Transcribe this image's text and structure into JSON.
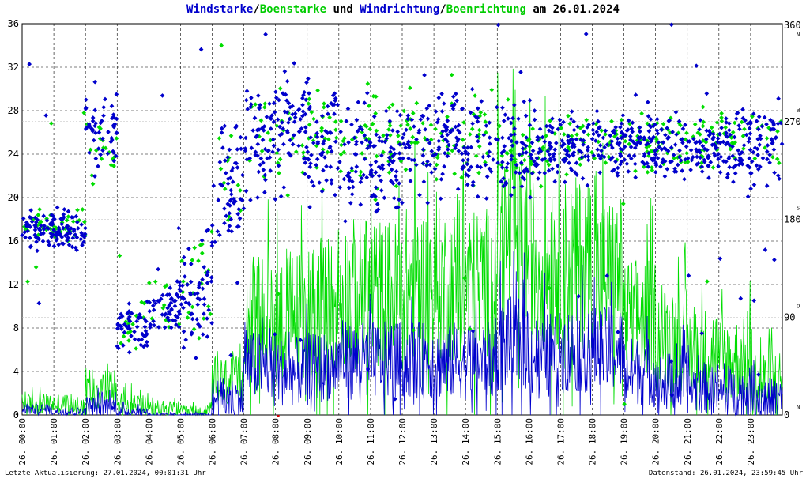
{
  "title": {
    "part1": "Windstarke",
    "sep1": "/",
    "part2": "Boenstarke",
    "part3": " und ",
    "part4": "Windrichtung",
    "sep2": "/",
    "part5": "Boenrichtung",
    "part6": " am 26.01.2024"
  },
  "footer": {
    "left": "Letzte Aktualisierung: 27.01.2024, 00:01:31 Uhr",
    "right": "Datenstand: 26.01.2024, 23:59:45 Uhr"
  },
  "colors": {
    "wind": "#0000cc",
    "gust": "#00dd00",
    "grid": "#000000",
    "background": "#ffffff",
    "marker": "#cc0000"
  },
  "chart_data": {
    "type": "line+scatter",
    "x_tick_labels": [
      "26. 00:00",
      "26. 01:00",
      "26. 02:00",
      "26. 03:00",
      "26. 04:00",
      "26. 05:00",
      "26. 06:00",
      "26. 07:00",
      "26. 08:00",
      "26. 09:00",
      "26. 10:00",
      "26. 11:00",
      "26. 12:00",
      "26. 13:00",
      "26. 14:00",
      "26. 15:00",
      "26. 16:00",
      "26. 17:00",
      "26. 18:00",
      "26. 19:00",
      "26. 20:00",
      "26. 21:00",
      "26. 22:00",
      "26. 23:00"
    ],
    "xlim": [
      0,
      24
    ],
    "y_left": {
      "ylim": [
        0,
        36
      ],
      "ticks": [
        "0",
        "4",
        "8",
        "12",
        "16",
        "20",
        "24",
        "28",
        "32",
        "36"
      ]
    },
    "y_right": {
      "ylim": [
        0,
        360
      ],
      "ticks": [
        "0",
        "90",
        "180",
        "270",
        "360"
      ],
      "compass": [
        "N",
        "O",
        "S",
        "W",
        "N"
      ]
    },
    "grid": true,
    "series": [
      {
        "name": "Windstarke",
        "axis": "left",
        "style": "line",
        "color": "#0000cc",
        "hour_levels": [
          0.5,
          0.3,
          0.8,
          0.3,
          0,
          0,
          1.5,
          4.5,
          4,
          4.5,
          5,
          5,
          5,
          5,
          5,
          6.5,
          5.5,
          6,
          6,
          4,
          3,
          2.5,
          2,
          1.5
        ],
        "hour_spread": [
          0.6,
          0.5,
          1.2,
          0.6,
          0.2,
          0.2,
          2.5,
          4,
          4,
          4,
          4.5,
          4.5,
          4.5,
          4.5,
          4.5,
          5.5,
          5,
          5,
          5,
          4,
          3.5,
          3,
          3,
          2.5
        ]
      },
      {
        "name": "Boenstarke",
        "axis": "left",
        "style": "line",
        "color": "#00dd00",
        "hour_levels": [
          1,
          1,
          2.5,
          1,
          0.5,
          0.3,
          3,
          9,
          9,
          10,
          11,
          11,
          12,
          12,
          12,
          16,
          14,
          14,
          13,
          9,
          7,
          6,
          5,
          3
        ],
        "hour_spread": [
          1.2,
          1.2,
          2.5,
          1.3,
          1,
          0.7,
          3,
          7,
          8,
          8,
          9,
          9,
          9,
          9,
          9,
          10,
          10,
          10,
          9,
          7,
          6,
          5,
          5,
          4
        ]
      },
      {
        "name": "Windrichtung",
        "axis": "right",
        "style": "scatter",
        "color": "#0000cc",
        "hour_mean_deg": [
          170,
          170,
          260,
          80,
          100,
          110,
          210,
          250,
          260,
          250,
          240,
          240,
          250,
          250,
          250,
          240,
          250,
          245,
          250,
          250,
          245,
          245,
          250,
          250
        ],
        "hour_spread_deg": [
          15,
          20,
          40,
          25,
          30,
          60,
          60,
          55,
          55,
          55,
          55,
          55,
          50,
          50,
          50,
          45,
          40,
          35,
          30,
          30,
          30,
          30,
          35,
          40
        ]
      },
      {
        "name": "Boenrichtung",
        "axis": "right",
        "style": "scatter",
        "color": "#00dd00",
        "hour_mean_deg": [
          175,
          175,
          250,
          85,
          100,
          120,
          220,
          260,
          260,
          260,
          250,
          250,
          260,
          255,
          255,
          250,
          250,
          250,
          255,
          250,
          250,
          250,
          255,
          255
        ],
        "hour_spread_deg": [
          15,
          20,
          35,
          25,
          30,
          55,
          55,
          50,
          50,
          50,
          50,
          50,
          45,
          45,
          45,
          40,
          35,
          30,
          30,
          30,
          30,
          30,
          30,
          35
        ]
      }
    ]
  }
}
